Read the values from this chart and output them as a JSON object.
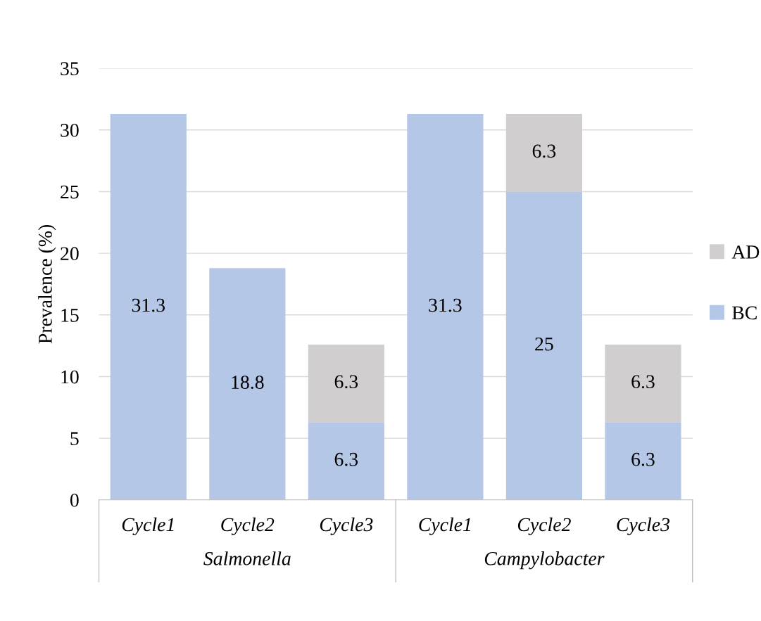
{
  "chart_data": {
    "type": "bar",
    "stacked": true,
    "ylabel": "Prevalence (%)",
    "categories": [
      "Cycle1",
      "Cycle2",
      "Cycle3",
      "Cycle1",
      "Cycle2",
      "Cycle3"
    ],
    "series": [
      {
        "name": "BC",
        "color": "#b4c7e7",
        "values": [
          31.3,
          18.8,
          6.3,
          31.3,
          25,
          6.3
        ]
      },
      {
        "name": "AD",
        "color": "#d0cece",
        "values": [
          null,
          null,
          6.3,
          null,
          6.3,
          6.3
        ]
      }
    ],
    "annotations": [
      "Salmonella",
      "Campylobacter"
    ],
    "ylim": [
      0,
      35
    ],
    "yticks": [
      0,
      5,
      10,
      15,
      20,
      25,
      30,
      35
    ],
    "grid": "y",
    "legend": "right",
    "data_labels": true
  }
}
